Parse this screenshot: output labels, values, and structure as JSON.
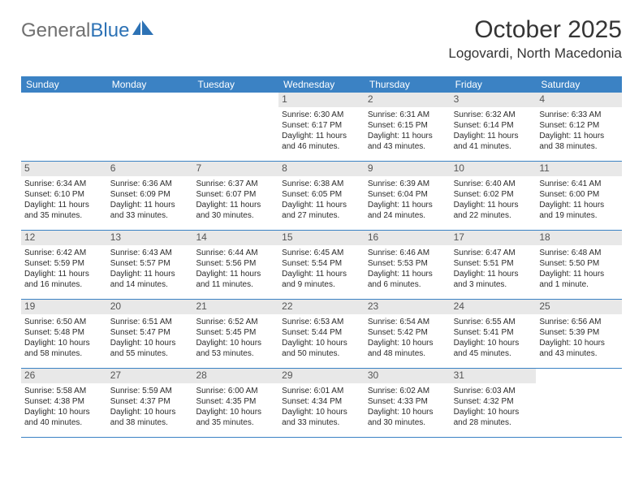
{
  "logo": {
    "text1": "General",
    "text2": "Blue"
  },
  "header": {
    "title": "October 2025",
    "location": "Logovardi, North Macedonia"
  },
  "colors": {
    "header_bg": "#3b82c4",
    "header_text": "#ffffff",
    "daynum_bg": "#e8e8e8",
    "daynum_text": "#555555",
    "row_border": "#3b82c4",
    "body_text": "#2b2b2b",
    "logo_gray": "#707070",
    "logo_blue": "#2d72b5"
  },
  "dayNames": [
    "Sunday",
    "Monday",
    "Tuesday",
    "Wednesday",
    "Thursday",
    "Friday",
    "Saturday"
  ],
  "weeks": [
    [
      null,
      null,
      null,
      {
        "n": "1",
        "sunrise": "6:30 AM",
        "sunset": "6:17 PM",
        "dl1": "Daylight: 11 hours",
        "dl2": "and 46 minutes."
      },
      {
        "n": "2",
        "sunrise": "6:31 AM",
        "sunset": "6:15 PM",
        "dl1": "Daylight: 11 hours",
        "dl2": "and 43 minutes."
      },
      {
        "n": "3",
        "sunrise": "6:32 AM",
        "sunset": "6:14 PM",
        "dl1": "Daylight: 11 hours",
        "dl2": "and 41 minutes."
      },
      {
        "n": "4",
        "sunrise": "6:33 AM",
        "sunset": "6:12 PM",
        "dl1": "Daylight: 11 hours",
        "dl2": "and 38 minutes."
      }
    ],
    [
      {
        "n": "5",
        "sunrise": "6:34 AM",
        "sunset": "6:10 PM",
        "dl1": "Daylight: 11 hours",
        "dl2": "and 35 minutes."
      },
      {
        "n": "6",
        "sunrise": "6:36 AM",
        "sunset": "6:09 PM",
        "dl1": "Daylight: 11 hours",
        "dl2": "and 33 minutes."
      },
      {
        "n": "7",
        "sunrise": "6:37 AM",
        "sunset": "6:07 PM",
        "dl1": "Daylight: 11 hours",
        "dl2": "and 30 minutes."
      },
      {
        "n": "8",
        "sunrise": "6:38 AM",
        "sunset": "6:05 PM",
        "dl1": "Daylight: 11 hours",
        "dl2": "and 27 minutes."
      },
      {
        "n": "9",
        "sunrise": "6:39 AM",
        "sunset": "6:04 PM",
        "dl1": "Daylight: 11 hours",
        "dl2": "and 24 minutes."
      },
      {
        "n": "10",
        "sunrise": "6:40 AM",
        "sunset": "6:02 PM",
        "dl1": "Daylight: 11 hours",
        "dl2": "and 22 minutes."
      },
      {
        "n": "11",
        "sunrise": "6:41 AM",
        "sunset": "6:00 PM",
        "dl1": "Daylight: 11 hours",
        "dl2": "and 19 minutes."
      }
    ],
    [
      {
        "n": "12",
        "sunrise": "6:42 AM",
        "sunset": "5:59 PM",
        "dl1": "Daylight: 11 hours",
        "dl2": "and 16 minutes."
      },
      {
        "n": "13",
        "sunrise": "6:43 AM",
        "sunset": "5:57 PM",
        "dl1": "Daylight: 11 hours",
        "dl2": "and 14 minutes."
      },
      {
        "n": "14",
        "sunrise": "6:44 AM",
        "sunset": "5:56 PM",
        "dl1": "Daylight: 11 hours",
        "dl2": "and 11 minutes."
      },
      {
        "n": "15",
        "sunrise": "6:45 AM",
        "sunset": "5:54 PM",
        "dl1": "Daylight: 11 hours",
        "dl2": "and 9 minutes."
      },
      {
        "n": "16",
        "sunrise": "6:46 AM",
        "sunset": "5:53 PM",
        "dl1": "Daylight: 11 hours",
        "dl2": "and 6 minutes."
      },
      {
        "n": "17",
        "sunrise": "6:47 AM",
        "sunset": "5:51 PM",
        "dl1": "Daylight: 11 hours",
        "dl2": "and 3 minutes."
      },
      {
        "n": "18",
        "sunrise": "6:48 AM",
        "sunset": "5:50 PM",
        "dl1": "Daylight: 11 hours",
        "dl2": "and 1 minute."
      }
    ],
    [
      {
        "n": "19",
        "sunrise": "6:50 AM",
        "sunset": "5:48 PM",
        "dl1": "Daylight: 10 hours",
        "dl2": "and 58 minutes."
      },
      {
        "n": "20",
        "sunrise": "6:51 AM",
        "sunset": "5:47 PM",
        "dl1": "Daylight: 10 hours",
        "dl2": "and 55 minutes."
      },
      {
        "n": "21",
        "sunrise": "6:52 AM",
        "sunset": "5:45 PM",
        "dl1": "Daylight: 10 hours",
        "dl2": "and 53 minutes."
      },
      {
        "n": "22",
        "sunrise": "6:53 AM",
        "sunset": "5:44 PM",
        "dl1": "Daylight: 10 hours",
        "dl2": "and 50 minutes."
      },
      {
        "n": "23",
        "sunrise": "6:54 AM",
        "sunset": "5:42 PM",
        "dl1": "Daylight: 10 hours",
        "dl2": "and 48 minutes."
      },
      {
        "n": "24",
        "sunrise": "6:55 AM",
        "sunset": "5:41 PM",
        "dl1": "Daylight: 10 hours",
        "dl2": "and 45 minutes."
      },
      {
        "n": "25",
        "sunrise": "6:56 AM",
        "sunset": "5:39 PM",
        "dl1": "Daylight: 10 hours",
        "dl2": "and 43 minutes."
      }
    ],
    [
      {
        "n": "26",
        "sunrise": "5:58 AM",
        "sunset": "4:38 PM",
        "dl1": "Daylight: 10 hours",
        "dl2": "and 40 minutes."
      },
      {
        "n": "27",
        "sunrise": "5:59 AM",
        "sunset": "4:37 PM",
        "dl1": "Daylight: 10 hours",
        "dl2": "and 38 minutes."
      },
      {
        "n": "28",
        "sunrise": "6:00 AM",
        "sunset": "4:35 PM",
        "dl1": "Daylight: 10 hours",
        "dl2": "and 35 minutes."
      },
      {
        "n": "29",
        "sunrise": "6:01 AM",
        "sunset": "4:34 PM",
        "dl1": "Daylight: 10 hours",
        "dl2": "and 33 minutes."
      },
      {
        "n": "30",
        "sunrise": "6:02 AM",
        "sunset": "4:33 PM",
        "dl1": "Daylight: 10 hours",
        "dl2": "and 30 minutes."
      },
      {
        "n": "31",
        "sunrise": "6:03 AM",
        "sunset": "4:32 PM",
        "dl1": "Daylight: 10 hours",
        "dl2": "and 28 minutes."
      },
      null
    ]
  ]
}
